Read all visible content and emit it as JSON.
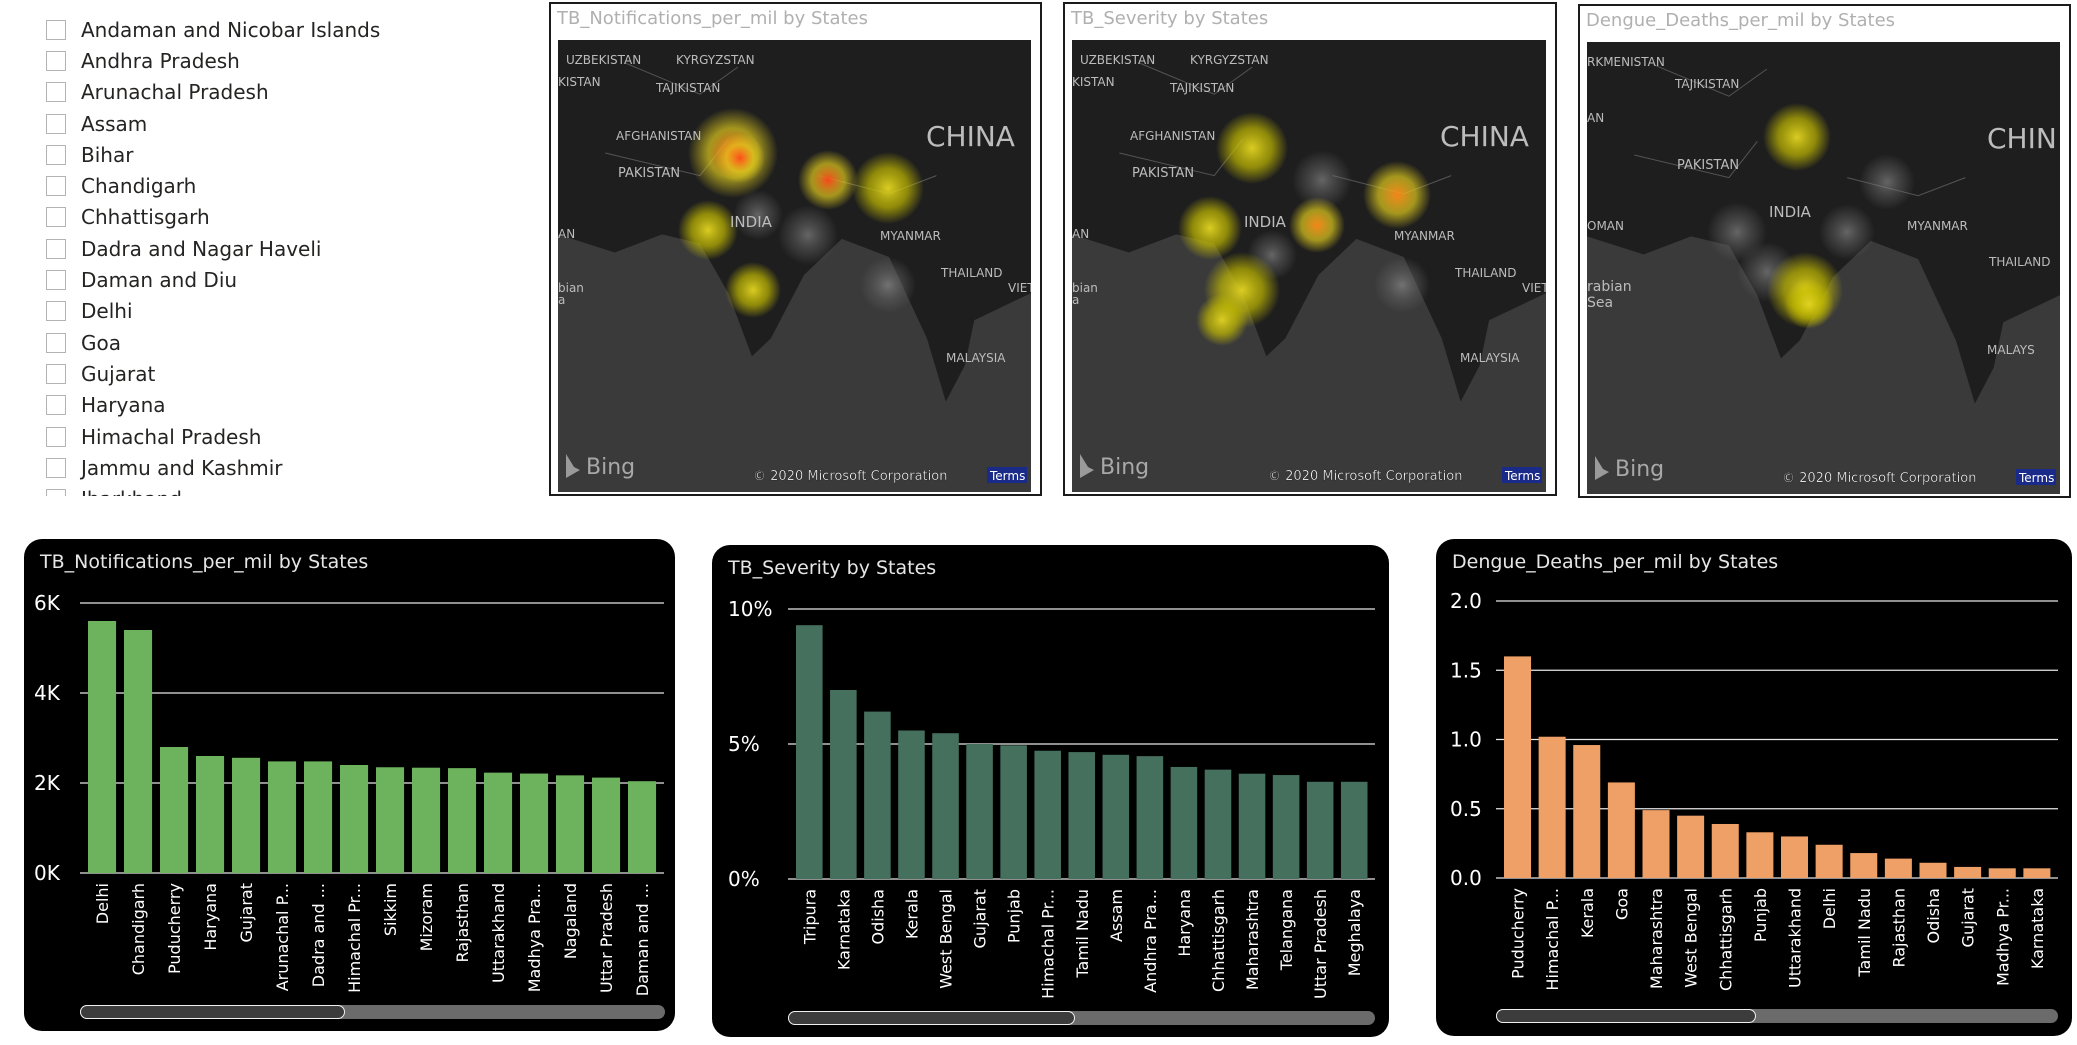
{
  "slicer": {
    "items": [
      {
        "label": "Andaman and Nicobar Islands"
      },
      {
        "label": "Andhra Pradesh"
      },
      {
        "label": "Arunachal Pradesh"
      },
      {
        "label": "Assam"
      },
      {
        "label": "Bihar"
      },
      {
        "label": "Chandigarh"
      },
      {
        "label": "Chhattisgarh"
      },
      {
        "label": "Dadra and Nagar Haveli"
      },
      {
        "label": "Daman and Diu"
      },
      {
        "label": "Delhi"
      },
      {
        "label": "Goa"
      },
      {
        "label": "Gujarat"
      },
      {
        "label": "Haryana"
      },
      {
        "label": "Himachal Pradesh"
      },
      {
        "label": "Jammu and Kashmir"
      },
      {
        "label": "Jharkhand"
      }
    ]
  },
  "maps": [
    {
      "title": "TB_Notifications_per_mil by States",
      "country_labels": [
        "UZBEKISTAN",
        "KYRGYZSTAN",
        "TAJIKISTAN",
        "KISTAN",
        "AFGHANISTAN",
        "PAKISTAN",
        "CHINA",
        "INDIA",
        "MYANMAR",
        "THAILAND",
        "VIET",
        "MALAYSIA",
        "AN",
        "bian",
        "a"
      ],
      "bing_label": "Bing",
      "copyright": "© 2020 Microsoft Corporation",
      "terms": "Terms",
      "hotspots": [
        {
          "name": "Delhi",
          "intensity": "red"
        },
        {
          "name": "Chandigarh",
          "intensity": "red"
        },
        {
          "name": "Northeast",
          "intensity": "yellow"
        },
        {
          "name": "Gujarat",
          "intensity": "yellow"
        },
        {
          "name": "South",
          "intensity": "yellow"
        }
      ]
    },
    {
      "title": "TB_Severity by States",
      "country_labels": [
        "UZBEKISTAN",
        "KYRGYZSTAN",
        "TAJIKISTAN",
        "KISTAN",
        "AFGHANISTAN",
        "PAKISTAN",
        "CHINA",
        "INDIA",
        "MYANMAR",
        "THAILAND",
        "VIET",
        "MALAYSIA",
        "AN",
        "bian",
        "a"
      ],
      "bing_label": "Bing",
      "copyright": "© 2020 Microsoft Corporation",
      "terms": "Terms",
      "hotspots": [
        {
          "name": "Tripura",
          "intensity": "orange"
        },
        {
          "name": "North",
          "intensity": "yellow"
        },
        {
          "name": "West",
          "intensity": "yellow"
        },
        {
          "name": "South",
          "intensity": "yellow"
        }
      ]
    },
    {
      "title": "Dengue_Deaths_per_mil by States",
      "country_labels": [
        "RKMENISTAN",
        "TAJIKISTAN",
        "AN",
        "PAKISTAN",
        "CHIN",
        "INDIA",
        "OMAN",
        "MYANMAR",
        "rabian",
        "Sea",
        "THAILAND",
        "MALAYS"
      ],
      "bing_label": "Bing",
      "copyright": "© 2020 Microsoft Corporation",
      "terms": "Terms",
      "hotspots": [
        {
          "name": "Puducherry",
          "intensity": "yellow"
        },
        {
          "name": "Himachal Pradesh",
          "intensity": "yellow"
        }
      ]
    }
  ],
  "colors": {
    "tb_notifications": "#6db35e",
    "tb_severity": "#46705e",
    "dengue": "#efa066"
  },
  "chart_data": [
    {
      "type": "bar",
      "title": "TB_Notifications_per_mil by States",
      "categories": [
        "Delhi",
        "Chandigarh",
        "Puducherry",
        "Haryana",
        "Gujarat",
        "Arunachal P...",
        "Dadra and ...",
        "Himachal Pr...",
        "Sikkim",
        "Mizoram",
        "Rajasthan",
        "Uttarakhand",
        "Madhya Pra...",
        "Nagaland",
        "Uttar Pradesh",
        "Daman and ..."
      ],
      "values": [
        5600,
        5400,
        2800,
        2600,
        2560,
        2480,
        2480,
        2400,
        2350,
        2340,
        2330,
        2230,
        2210,
        2170,
        2120,
        2040
      ],
      "ylim": [
        0,
        6000
      ],
      "yticks": [
        0,
        2000,
        4000,
        6000
      ],
      "ytick_labels": [
        "0K",
        "2K",
        "4K",
        "6K"
      ],
      "grid": true,
      "color": "#6db35e"
    },
    {
      "type": "bar",
      "title": "TB_Severity by States",
      "categories": [
        "Tripura",
        "Karnataka",
        "Odisha",
        "Kerala",
        "West Bengal",
        "Gujarat",
        "Punjab",
        "Himachal Pr...",
        "Tamil Nadu",
        "Assam",
        "Andhra Pra...",
        "Haryana",
        "Chhattisgarh",
        "Maharashtra",
        "Telangana",
        "Uttar Pradesh",
        "Meghalaya"
      ],
      "values": [
        9.4,
        7.0,
        6.2,
        5.5,
        5.4,
        5.0,
        4.95,
        4.75,
        4.7,
        4.6,
        4.55,
        4.15,
        4.05,
        3.9,
        3.85,
        3.6,
        3.6
      ],
      "ylim": [
        0,
        10
      ],
      "yticks": [
        0,
        5,
        10
      ],
      "ytick_labels": [
        "0%",
        "5%",
        "10%"
      ],
      "grid": true,
      "color": "#46705e"
    },
    {
      "type": "bar",
      "title": "Dengue_Deaths_per_mil by States",
      "categories": [
        "Puducherry",
        "Himachal P...",
        "Kerala",
        "Goa",
        "Maharashtra",
        "West Bengal",
        "Chhattisgarh",
        "Punjab",
        "Uttarakhand",
        "Delhi",
        "Tamil Nadu",
        "Rajasthan",
        "Odisha",
        "Gujarat",
        "Madhya Pr...",
        "Karnataka"
      ],
      "values": [
        1.6,
        1.02,
        0.96,
        0.69,
        0.49,
        0.45,
        0.39,
        0.33,
        0.3,
        0.24,
        0.18,
        0.14,
        0.11,
        0.08,
        0.07,
        0.07
      ],
      "ylim": [
        0,
        2
      ],
      "yticks": [
        0,
        0.5,
        1,
        1.5,
        2
      ],
      "ytick_labels": [
        "0.0",
        "0.5",
        "1.0",
        "1.5",
        "2.0"
      ],
      "grid": true,
      "color": "#efa066"
    }
  ]
}
